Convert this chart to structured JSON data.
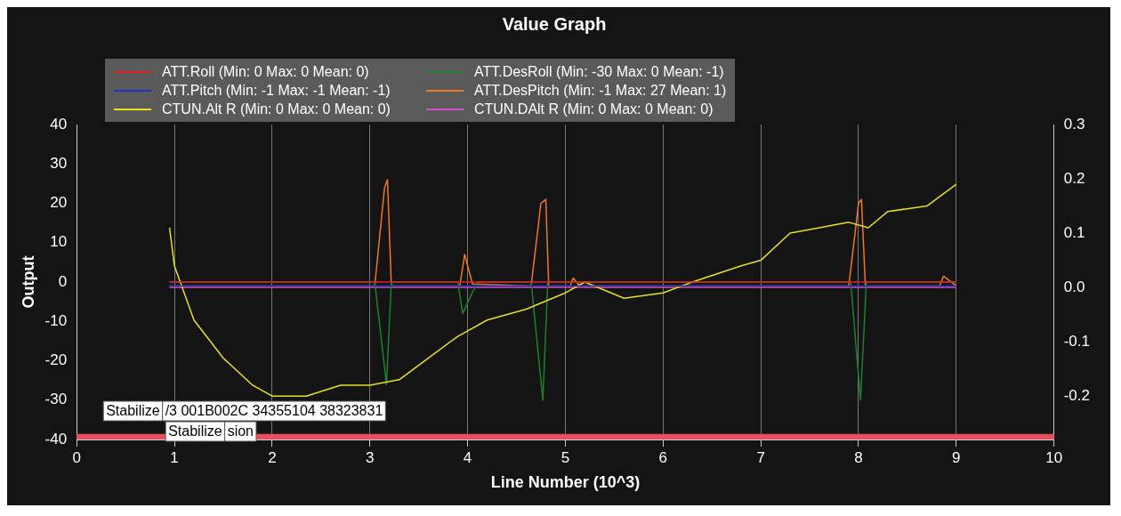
{
  "chart_data": {
    "type": "line",
    "title": "Value Graph",
    "xlabel": "Line Number (10^3)",
    "ylabel": "Output",
    "xlim": [
      0,
      10
    ],
    "xticks": [
      0,
      1,
      2,
      3,
      4,
      5,
      6,
      7,
      8,
      9,
      10
    ],
    "ylim": [
      -40,
      40
    ],
    "yticks": [
      -40,
      -30,
      -20,
      -10,
      0,
      10,
      20,
      30,
      40
    ],
    "y2lim": [
      -0.28,
      0.3
    ],
    "y2ticks": [
      -0.2,
      -0.1,
      {
        "value": 0,
        "label": "0.0"
      },
      0.1,
      0.2,
      0.3
    ],
    "grid": "x",
    "legend": "top left",
    "marker": "none",
    "line_style": "solid",
    "bands": [
      {
        "axis": "y",
        "from": -40,
        "to": -38.6,
        "color": "#e8505f"
      }
    ],
    "annotations": [
      "Stabilize",
      "/3 001B002C 34355104 38323831",
      "Stabilize",
      "sion"
    ],
    "series": [
      {
        "name": "ATT.Roll (Min: 0 Max: 0 Mean: 0)",
        "color": "#e02020",
        "x": [
          0.95,
          9.0
        ],
        "values": [
          0,
          0
        ]
      },
      {
        "name": "ATT.Pitch (Min: -1 Max: -1 Mean: -1)",
        "color": "#2030c0",
        "x": [
          0.95,
          9.0
        ],
        "values": [
          -1,
          -1
        ]
      },
      {
        "name": "CTUN.Alt R (Min: 0 Max: 0 Mean: 0)",
        "color": "#e8e020",
        "axis": "y2",
        "x": [
          0.95,
          1.0,
          1.2,
          1.5,
          1.8,
          2.0,
          2.2,
          2.35,
          2.7,
          3.0,
          3.3,
          3.6,
          3.9,
          4.2,
          4.6,
          5.0,
          5.2,
          5.6,
          6.0,
          6.3,
          6.8,
          7.0,
          7.3,
          7.6,
          7.9,
          8.1,
          8.3,
          8.7,
          9.0
        ],
        "values": [
          0.11,
          0.04,
          -0.06,
          -0.13,
          -0.18,
          -0.2,
          -0.2,
          -0.2,
          -0.18,
          -0.18,
          -0.17,
          -0.13,
          -0.09,
          -0.06,
          -0.04,
          -0.01,
          0.01,
          -0.02,
          -0.01,
          0.01,
          0.04,
          0.05,
          0.1,
          0.11,
          0.12,
          0.11,
          0.14,
          0.15,
          0.19
        ]
      },
      {
        "name": "ATT.DesRoll (Min: -30 Max: 0 Mean: -1)",
        "color": "#208030",
        "x": [
          0.95,
          3.05,
          3.17,
          3.22,
          3.9,
          3.95,
          4.1,
          4.65,
          4.77,
          4.82,
          7.92,
          8.02,
          8.08,
          9.0
        ],
        "values": [
          0,
          0,
          -26,
          0,
          0,
          -8,
          0,
          0,
          -30,
          0,
          0,
          -30,
          0,
          0
        ]
      },
      {
        "name": "ATT.DesPitch (Min: -1 Max: 27 Mean: 1)",
        "color": "#f07820",
        "x": [
          0.95,
          3.05,
          3.15,
          3.18,
          3.22,
          3.92,
          3.97,
          4.05,
          4.65,
          4.75,
          4.8,
          4.83,
          5.05,
          5.08,
          5.15,
          7.9,
          8.0,
          8.03,
          8.07,
          8.83,
          8.87,
          9.0
        ],
        "values": [
          -1,
          -1,
          24,
          26,
          -1,
          -1,
          7,
          -0.5,
          -1,
          20,
          21,
          -1,
          -1,
          1,
          -1,
          -1,
          20,
          21,
          -1,
          -1,
          1.5,
          -1
        ]
      },
      {
        "name": "CTUN.DAlt R (Min: 0 Max: 0 Mean: 0)",
        "color": "#d050d0",
        "axis": "y2",
        "x": [
          0.95,
          9.0
        ],
        "values": [
          0,
          0
        ]
      }
    ]
  }
}
